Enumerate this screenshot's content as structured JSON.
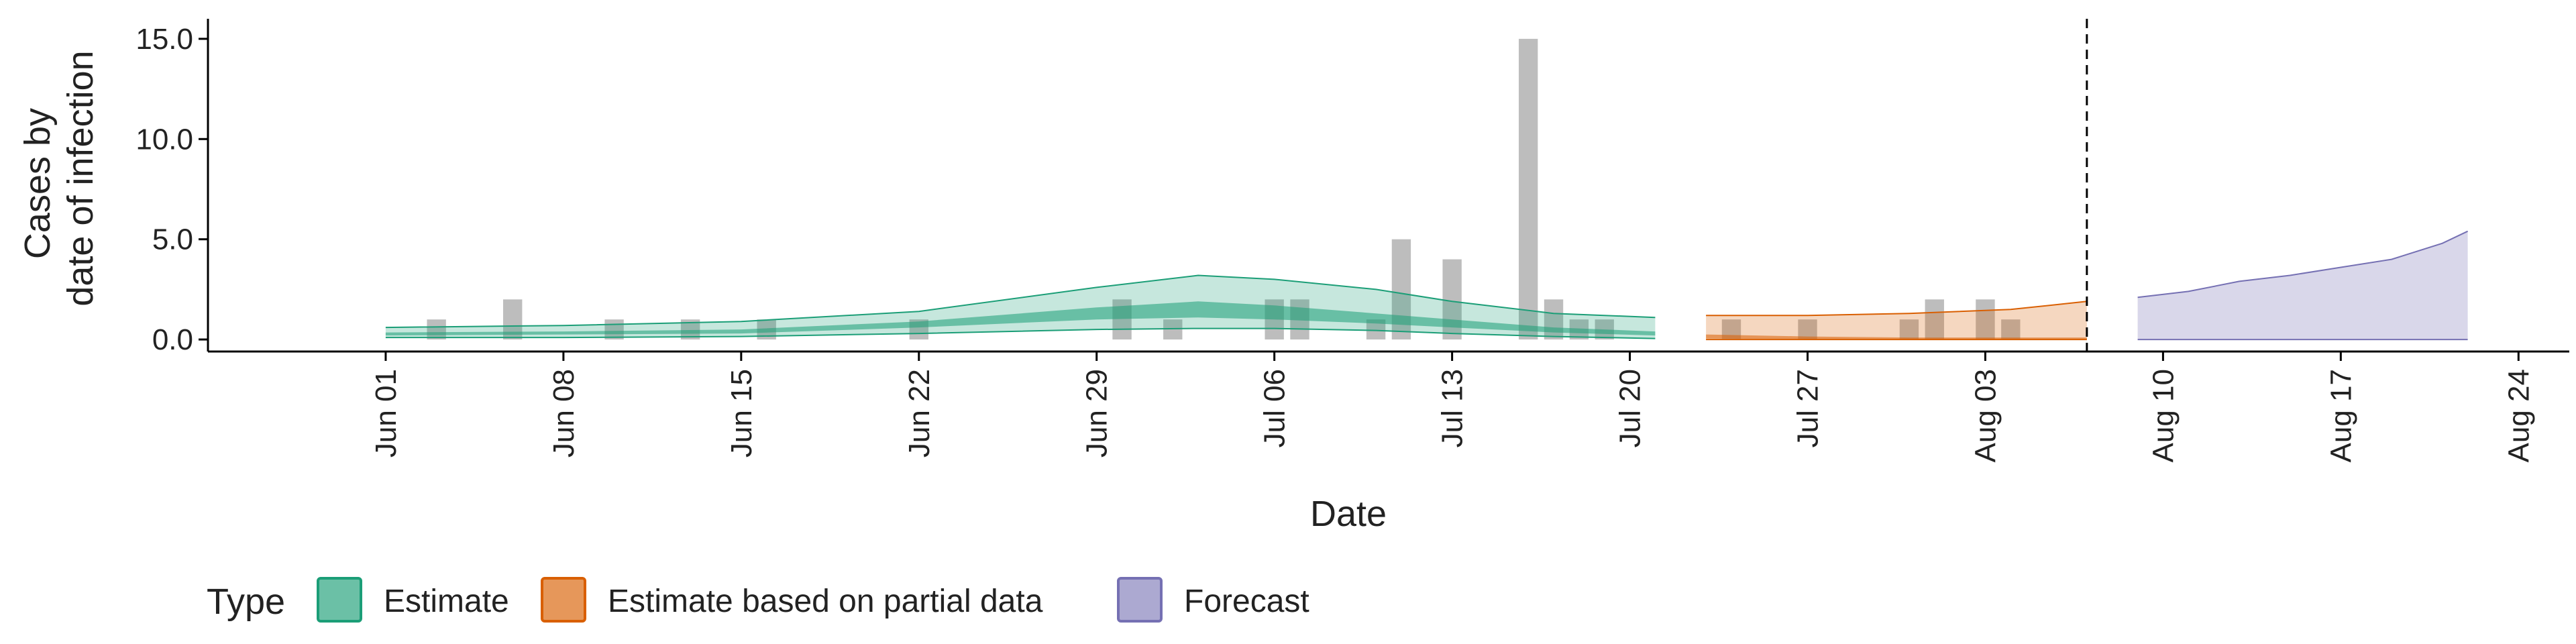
{
  "chart_data": {
    "type": "area",
    "title": "",
    "xlabel": "Date",
    "ylabel": [
      "Cases by",
      "date of infection"
    ],
    "ylim": [
      -0.6,
      16
    ],
    "xlim": [
      "2020-05-25",
      "2020-08-26"
    ],
    "y_ticks": [
      0,
      5,
      10,
      15
    ],
    "y_tick_labels": [
      "0.0",
      "5.0",
      "10.0",
      "15.0"
    ],
    "x_ticks": [
      "2020-06-01",
      "2020-06-08",
      "2020-06-15",
      "2020-06-22",
      "2020-06-29",
      "2020-07-06",
      "2020-07-13",
      "2020-07-20",
      "2020-07-27",
      "2020-08-03",
      "2020-08-10",
      "2020-08-17",
      "2020-08-24"
    ],
    "x_tick_labels": [
      "Jun 01",
      "Jun 08",
      "Jun 15",
      "Jun 22",
      "Jun 29",
      "Jul 06",
      "Jul 13",
      "Jul 20",
      "Jul 27",
      "Aug 03",
      "Aug 10",
      "Aug 17",
      "Aug 24"
    ],
    "grid": false,
    "forecast_date": "2020-08-07",
    "reported_cases": [
      {
        "date": "2020-06-03",
        "value": 1
      },
      {
        "date": "2020-06-06",
        "value": 2
      },
      {
        "date": "2020-06-10",
        "value": 1
      },
      {
        "date": "2020-06-13",
        "value": 1
      },
      {
        "date": "2020-06-16",
        "value": 1
      },
      {
        "date": "2020-06-22",
        "value": 1
      },
      {
        "date": "2020-06-30",
        "value": 2
      },
      {
        "date": "2020-07-02",
        "value": 1
      },
      {
        "date": "2020-07-06",
        "value": 2
      },
      {
        "date": "2020-07-07",
        "value": 2
      },
      {
        "date": "2020-07-10",
        "value": 1
      },
      {
        "date": "2020-07-11",
        "value": 5
      },
      {
        "date": "2020-07-13",
        "value": 4
      },
      {
        "date": "2020-07-16",
        "value": 15
      },
      {
        "date": "2020-07-17",
        "value": 2
      },
      {
        "date": "2020-07-18",
        "value": 1
      },
      {
        "date": "2020-07-19",
        "value": 1
      },
      {
        "date": "2020-07-24",
        "value": 1
      },
      {
        "date": "2020-07-27",
        "value": 1
      },
      {
        "date": "2020-07-31",
        "value": 1
      },
      {
        "date": "2020-08-01",
        "value": 2
      },
      {
        "date": "2020-08-03",
        "value": 2
      },
      {
        "date": "2020-08-04",
        "value": 1
      }
    ],
    "series": [
      {
        "name": "Estimate",
        "color": "#1b9e77",
        "x": [
          "2020-06-01",
          "2020-06-08",
          "2020-06-15",
          "2020-06-22",
          "2020-06-29",
          "2020-07-03",
          "2020-07-06",
          "2020-07-10",
          "2020-07-13",
          "2020-07-17",
          "2020-07-21"
        ],
        "lower_90": [
          0.1,
          0.1,
          0.15,
          0.3,
          0.5,
          0.55,
          0.55,
          0.45,
          0.3,
          0.15,
          0.05
        ],
        "upper_90": [
          0.6,
          0.7,
          0.9,
          1.4,
          2.6,
          3.2,
          3.0,
          2.5,
          1.9,
          1.3,
          1.1
        ],
        "lower_50": [
          0.2,
          0.25,
          0.3,
          0.6,
          1.0,
          1.1,
          1.0,
          0.8,
          0.6,
          0.35,
          0.2
        ],
        "upper_50": [
          0.35,
          0.4,
          0.5,
          0.9,
          1.6,
          1.9,
          1.7,
          1.3,
          1.0,
          0.6,
          0.4
        ]
      },
      {
        "name": "Estimate based on partial data",
        "color": "#d95f02",
        "x": [
          "2020-07-23",
          "2020-07-27",
          "2020-07-31",
          "2020-08-04",
          "2020-08-07"
        ],
        "lower_90": [
          0.0,
          0.0,
          0.0,
          0.0,
          0.0
        ],
        "upper_90": [
          1.2,
          1.2,
          1.3,
          1.5,
          1.9
        ],
        "lower_50": [
          0.05,
          0.02,
          0.02,
          0.02,
          0.02
        ],
        "upper_50": [
          0.25,
          0.15,
          0.1,
          0.1,
          0.1
        ]
      },
      {
        "name": "Forecast",
        "color": "#7570b3",
        "x": [
          "2020-08-09",
          "2020-08-11",
          "2020-08-13",
          "2020-08-15",
          "2020-08-17",
          "2020-08-19",
          "2020-08-21",
          "2020-08-22"
        ],
        "lower_90": [
          0,
          0,
          0,
          0,
          0,
          0,
          0,
          0
        ],
        "upper_90": [
          2.1,
          2.4,
          2.9,
          3.2,
          3.6,
          4.0,
          4.8,
          5.4
        ]
      }
    ],
    "legend": {
      "title": "Type",
      "placement": "bottom-left",
      "items": [
        "Estimate",
        "Estimate based on partial data",
        "Forecast"
      ]
    }
  }
}
